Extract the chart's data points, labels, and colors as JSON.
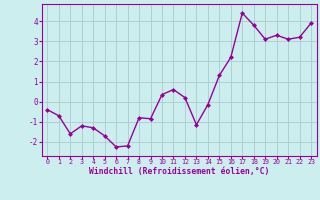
{
  "x": [
    0,
    1,
    2,
    3,
    4,
    5,
    6,
    7,
    8,
    9,
    10,
    11,
    12,
    13,
    14,
    15,
    16,
    17,
    18,
    19,
    20,
    21,
    22,
    23
  ],
  "y": [
    -0.4,
    -0.7,
    -1.6,
    -1.2,
    -1.3,
    -1.7,
    -2.25,
    -2.2,
    -0.8,
    -0.85,
    0.35,
    0.6,
    0.2,
    -1.15,
    -0.15,
    1.3,
    2.2,
    4.4,
    3.8,
    3.1,
    3.3,
    3.1,
    3.2,
    3.9
  ],
  "line_color": "#990099",
  "marker": "D",
  "marker_size": 2.0,
  "linewidth": 1.0,
  "bg_color": "#cceeee",
  "grid_color": "#aacccc",
  "xlabel": "Windchill (Refroidissement éolien,°C)",
  "xlabel_color": "#990099",
  "tick_color": "#990099",
  "spine_color": "#990099",
  "xlim": [
    -0.5,
    23.5
  ],
  "ylim": [
    -2.7,
    4.85
  ],
  "yticks": [
    -2,
    -1,
    0,
    1,
    2,
    3,
    4
  ],
  "xticks": [
    0,
    1,
    2,
    3,
    4,
    5,
    6,
    7,
    8,
    9,
    10,
    11,
    12,
    13,
    14,
    15,
    16,
    17,
    18,
    19,
    20,
    21,
    22,
    23
  ],
  "xtick_fontsize": 4.8,
  "ytick_fontsize": 5.5,
  "xlabel_fontsize": 5.8
}
